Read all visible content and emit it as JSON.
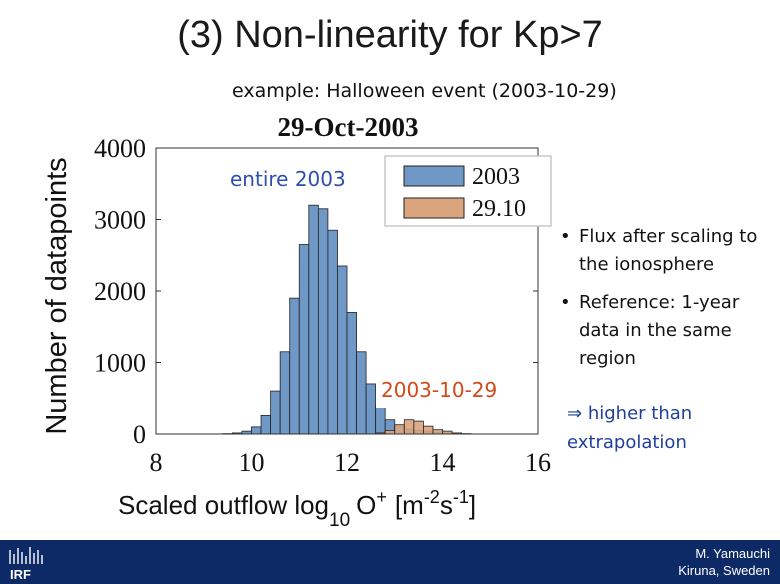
{
  "slide": {
    "title": "(3) Non-linearity for Kp>7",
    "subtitle": "example: Halloween event (2003-10-29)",
    "bullets": [
      "Flux after scaling to the ionosphere",
      "Reference: 1-year data in the same region"
    ],
    "bullet_marker": "•",
    "conclusion_arrow": "⇒",
    "conclusion": "higher than extrapolation",
    "footer": {
      "author": "M. Yamauchi",
      "location": "Kiruna, Sweden",
      "logo_text": "IRF"
    }
  },
  "chart_data": {
    "type": "bar",
    "title": "29-Oct-2003",
    "xlabel_main": "Scaled outflow log",
    "xlabel_sub": "10",
    "xlabel_species": "O",
    "xlabel_charge": "+",
    "xlabel_unit_open": "[m",
    "xlabel_unit_exp1": "-2",
    "xlabel_unit_mid": "s",
    "xlabel_unit_exp2": "-1",
    "xlabel_unit_close": "]",
    "ylabel": "Number of datapoints",
    "xlim": [
      8,
      16
    ],
    "ylim": [
      0,
      4000
    ],
    "xticks": [
      8,
      10,
      12,
      14,
      16
    ],
    "yticks": [
      0,
      1000,
      2000,
      3000,
      4000
    ],
    "bin_width": 0.2,
    "series": [
      {
        "name": "2003",
        "color": "#6f98c6",
        "x": [
          9.5,
          9.7,
          9.9,
          10.1,
          10.3,
          10.5,
          10.7,
          10.9,
          11.1,
          11.3,
          11.5,
          11.7,
          11.9,
          12.1,
          12.3,
          12.5,
          12.7,
          12.9,
          13.1,
          13.3,
          13.5,
          13.7,
          13.9,
          14.1,
          14.3
        ],
        "values": [
          5,
          15,
          40,
          100,
          260,
          600,
          1150,
          1900,
          2650,
          3200,
          3150,
          2850,
          2350,
          1700,
          1150,
          700,
          400,
          200,
          110,
          70,
          50,
          40,
          25,
          15,
          8
        ]
      },
      {
        "name": "29.10",
        "color": "#d9a47e",
        "x": [
          12.7,
          12.9,
          13.1,
          13.3,
          13.5,
          13.7,
          13.9,
          14.1,
          14.3,
          14.5
        ],
        "values": [
          15,
          50,
          130,
          200,
          180,
          110,
          60,
          40,
          15,
          5
        ]
      }
    ],
    "annotations": [
      {
        "text": "entire 2003",
        "color": "#2e4fae"
      },
      {
        "text": "2003-10-29",
        "color": "#d04a1a"
      }
    ],
    "legend_position": "top-right"
  }
}
